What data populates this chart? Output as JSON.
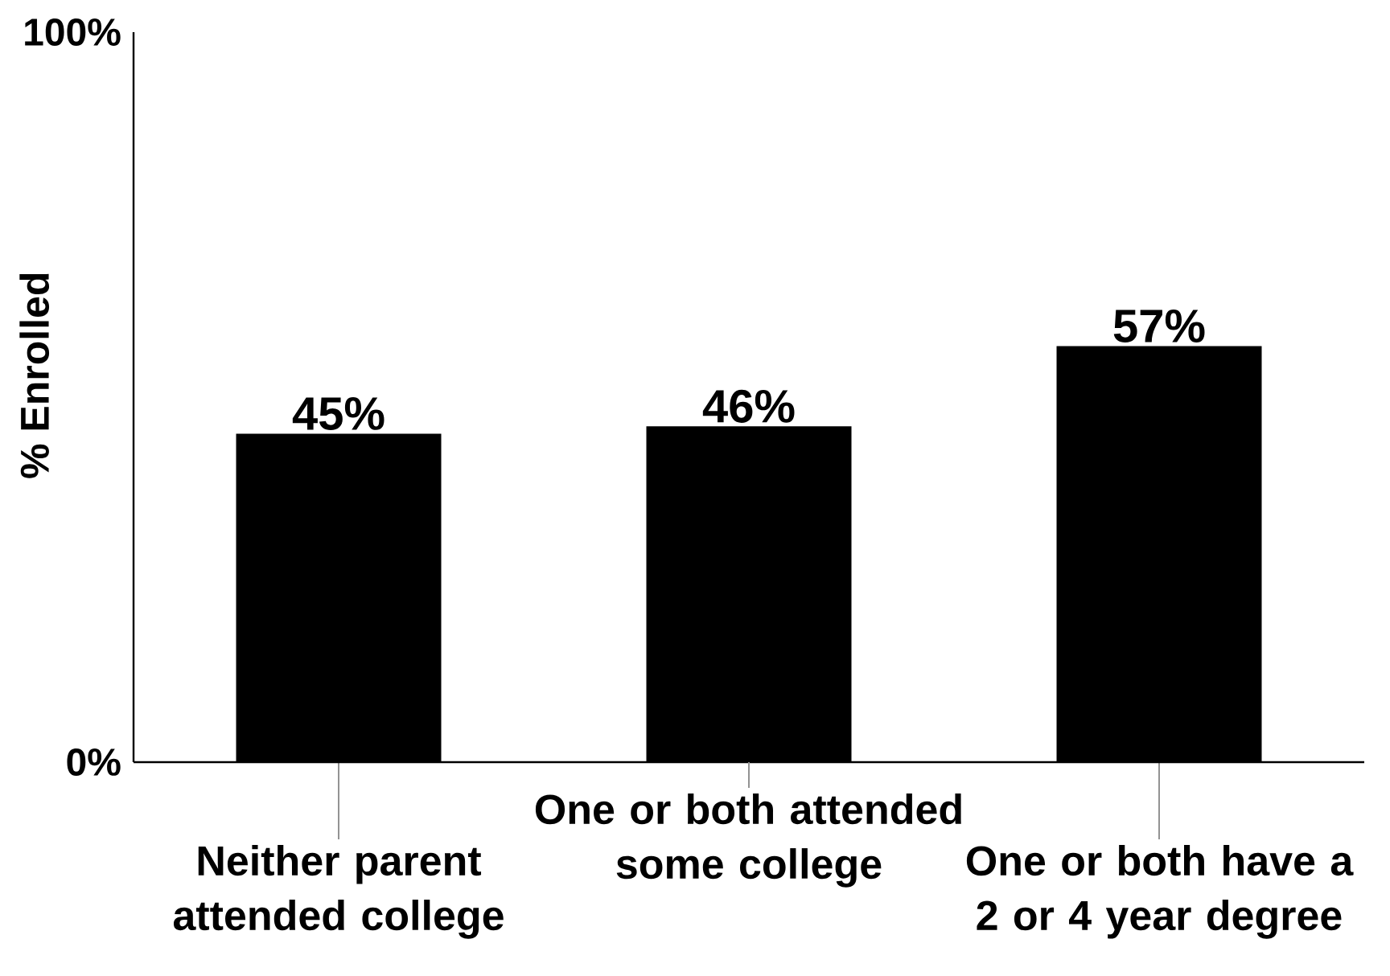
{
  "chart_data": {
    "type": "bar",
    "ylabel": "% Enrolled",
    "categories": [
      "Neither parent attended college",
      "One or both attended some college",
      "One or both have a 2 or 4 year degree"
    ],
    "values": [
      45,
      46,
      57
    ],
    "color": "#000000",
    "value_labels": [
      "45%",
      "46%",
      "57%"
    ],
    "ylim": [
      0,
      100
    ],
    "yticks": [
      {
        "value": 0,
        "label": "0%"
      },
      {
        "value": 100,
        "label": "100%"
      }
    ]
  }
}
